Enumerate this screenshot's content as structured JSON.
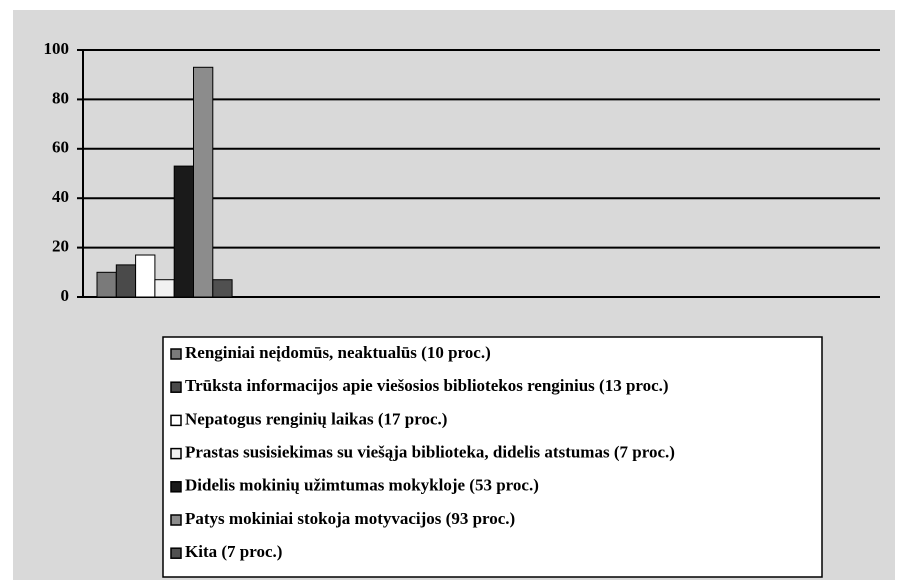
{
  "chart_data": {
    "type": "bar",
    "categories": [
      null
    ],
    "series": [
      {
        "name": "Renginiai neįdomūs, neaktualūs (10 proc.)",
        "color": "#7a7a7a",
        "values": [
          10
        ]
      },
      {
        "name": "Trūksta informacijos apie viešosios bibliotekos renginius (13 proc.)",
        "color": "#4a4a4a",
        "values": [
          13
        ]
      },
      {
        "name": "Nepatogus renginių laikas (17 proc.)",
        "color": "#ffffff",
        "values": [
          17
        ]
      },
      {
        "name": "Prastas susisiekimas su viešąja biblioteka, didelis atstumas (7 proc.)",
        "color": "#f2f2f2",
        "values": [
          7
        ]
      },
      {
        "name": "Didelis mokinių užimtumas mokykloje (53 proc.)",
        "color": "#1a1a1a",
        "values": [
          53
        ]
      },
      {
        "name": "Patys mokiniai stokoja motyvacijos (93 proc.)",
        "color": "#8c8c8c",
        "values": [
          93
        ]
      },
      {
        "name": "Kita (7 proc.)",
        "color": "#505050",
        "values": [
          7
        ]
      }
    ],
    "ylim": [
      0,
      100
    ],
    "yticks": [
      0,
      20,
      40,
      60,
      80,
      100
    ],
    "grid": true,
    "legend": "bottom"
  }
}
